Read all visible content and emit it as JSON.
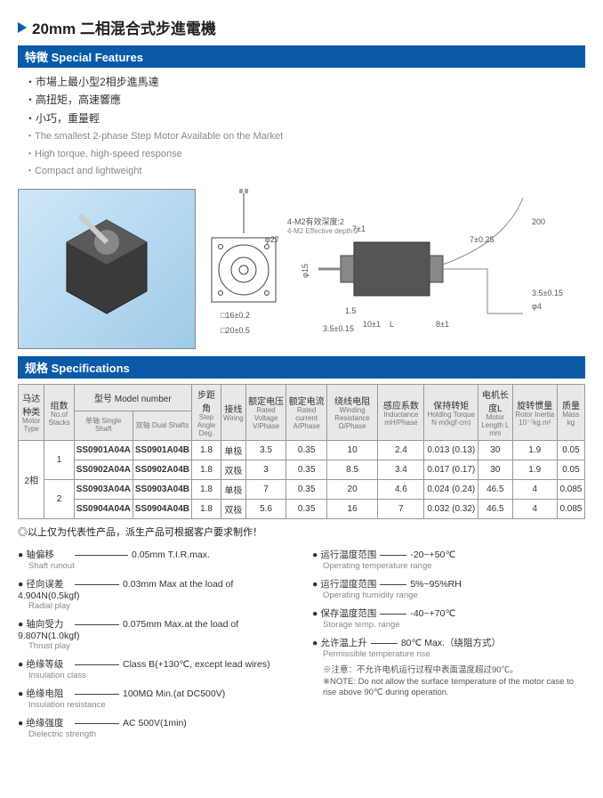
{
  "title": "20mm 二相混合式步進電機",
  "sections": {
    "features": "特徵 Special Features",
    "specs": "规格 Specifications"
  },
  "features_cn": [
    "・市場上最小型2相步進馬達",
    "・高扭矩，高速響應",
    "・小巧，重量輕"
  ],
  "features_en": [
    "・The smallest 2-phase Step Motor Available on the Market",
    "・High torque, high-speed response",
    "・Compact and lightweight"
  ],
  "diagram_labels": {
    "photo": "[motor photo]",
    "note1": "4-M2有效深度:2",
    "note2": "4-M2 Effective depth:2",
    "dim1": "□16±0.2",
    "dim2": "□20±0.5",
    "dim3": "φ27",
    "dim4": "7±1",
    "dim5": "1.5",
    "dim6": "10±1",
    "dim7": "L",
    "dim8": "8±1",
    "dim9": "200",
    "dim10": "3.5±0.15",
    "dim11": "φ15",
    "dim12": "φ4"
  },
  "spec_headers": [
    {
      "cn": "马达种类",
      "en": "Motor Type"
    },
    {
      "cn": "组数",
      "en": "No.of Stacks"
    },
    {
      "cn": "型号 Model number",
      "en": ""
    },
    {
      "cn": "步距角",
      "en": "Step Angle Deg."
    },
    {
      "cn": "接线",
      "en": "Wiring"
    },
    {
      "cn": "额定电压",
      "en": "Rated Voltage V/Phase"
    },
    {
      "cn": "额定电流",
      "en": "Rated current A/Phase"
    },
    {
      "cn": "绕线电阻",
      "en": "Winding Resistance Ω/Phase"
    },
    {
      "cn": "感应系数",
      "en": "Inductance mH/Phase"
    },
    {
      "cn": "保持转矩",
      "en": "Holding Torque N·m(kgf·cm)"
    },
    {
      "cn": "电机长度L",
      "en": "Motor Length L mm"
    },
    {
      "cn": "旋转惯量",
      "en": "Rotor Inertia 10⁻⁷kg.m²"
    },
    {
      "cn": "质量",
      "en": "Mass kg"
    }
  ],
  "spec_sub": {
    "single": "单轴 Single Shaft",
    "dual": "双轴 Dual Shafts"
  },
  "motor_type": "2相",
  "spec_rows": [
    {
      "stack": "1",
      "single": "SS0901A04A",
      "dual": "SS0901A04B",
      "step": "1.8",
      "wiring": "单极",
      "v": "3.5",
      "a": "0.35",
      "r": "10",
      "l": "2.4",
      "torque": "0.013 (0.13)",
      "len": "30",
      "inertia": "1.9",
      "mass": "0.05"
    },
    {
      "stack": "",
      "single": "SS0902A04A",
      "dual": "SS0902A04B",
      "step": "1.8",
      "wiring": "双极",
      "v": "3",
      "a": "0.35",
      "r": "8.5",
      "l": "3.4",
      "torque": "0.017 (0.17)",
      "len": "30",
      "inertia": "1.9",
      "mass": "0.05"
    },
    {
      "stack": "2",
      "single": "SS0903A04A",
      "dual": "SS0903A04B",
      "step": "1.8",
      "wiring": "单极",
      "v": "7",
      "a": "0.35",
      "r": "20",
      "l": "4.6",
      "torque": "0.024 (0.24)",
      "len": "46.5",
      "inertia": "4",
      "mass": "0.085"
    },
    {
      "stack": "",
      "single": "SS0904A04A",
      "dual": "SS0904A04B",
      "step": "1.8",
      "wiring": "双极",
      "v": "5.6",
      "a": "0.35",
      "r": "16",
      "l": "7",
      "torque": "0.032 (0.32)",
      "len": "46.5",
      "inertia": "4",
      "mass": "0.085"
    }
  ],
  "footnote": "◎以上仅为代表性产品，派生产品可根据客户要求制作！",
  "details_left": [
    {
      "cn": "轴偏移",
      "en": "Shaft runout",
      "dash": 60,
      "val": "0.05mm T.I.R.max."
    },
    {
      "cn": "径向误差",
      "en": "Radial play",
      "dash": 50,
      "val": "0.03mm Max at the load of 4.904N(0.5kgf)"
    },
    {
      "cn": "轴向受力",
      "en": "Thrust play",
      "dash": 50,
      "val": "0.075mm Max.at the load of 9.807N(1.0kgf)"
    },
    {
      "cn": "绝缘等级",
      "en": "Insulation class",
      "dash": 50,
      "val": "Class B(+130℃, except lead wires)"
    },
    {
      "cn": "绝缘电阻",
      "en": "Insulation resistance",
      "dash": 50,
      "val": "100MΩ Min.(at DC500V)"
    },
    {
      "cn": "绝缘强度",
      "en": "Dielectric strength",
      "dash": 50,
      "val": "AC 500V(1min)"
    }
  ],
  "details_right": [
    {
      "cn": "运行温度范围",
      "en": "Operating temperature range",
      "dash": 30,
      "val": "-20~+50℃"
    },
    {
      "cn": "运行湿度范围",
      "en": "Operating humidity range",
      "dash": 30,
      "val": "5%~95%RH"
    },
    {
      "cn": "保存温度范围",
      "en": "Storage temp. range",
      "dash": 30,
      "val": "-40~+70℃"
    },
    {
      "cn": "允许温上升",
      "en": "Permissible temperature rise",
      "dash": 30,
      "val": "80℃ Max.（绕阻方式）"
    }
  ],
  "warning_cn": "※注意：不允许电机运行过程中表面温度超过90℃。",
  "warning_en": "※NOTE: Do not allow the surface temperature of the motor case to rise above 90℃ during operation."
}
